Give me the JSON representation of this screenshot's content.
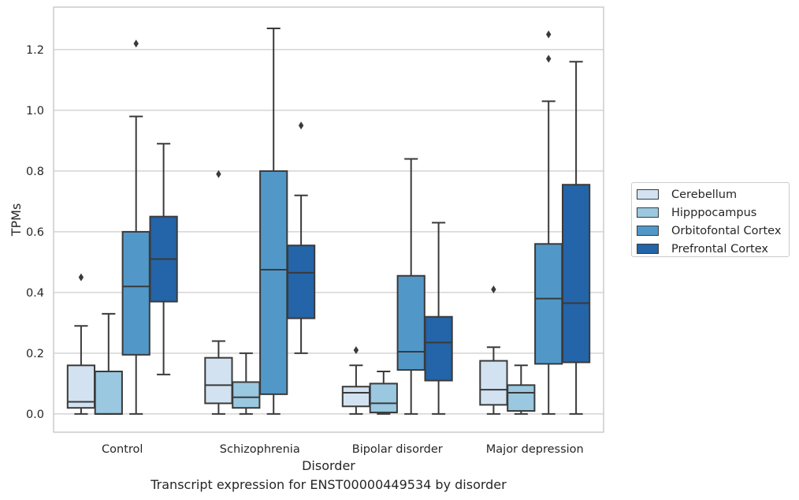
{
  "chart_data": {
    "type": "box",
    "title": "",
    "xlabel": "Disorder",
    "ylabel": "TPMs",
    "ylim": [
      -0.06,
      1.34
    ],
    "yticks": [
      0.0,
      0.2,
      0.4,
      0.6,
      0.8,
      1.0,
      1.2
    ],
    "grid": "horizontal",
    "legend_position": "right",
    "categories": [
      "Control",
      "Schizophrenia",
      "Bipolar disorder",
      "Major depression"
    ],
    "series": [
      {
        "name": "Cerebellum",
        "color": "#d2e2f1",
        "boxes": [
          {
            "whisker_low": 0.0,
            "q1": 0.02,
            "median": 0.04,
            "q3": 0.16,
            "whisker_high": 0.29,
            "outliers": [
              0.45
            ]
          },
          {
            "whisker_low": 0.0,
            "q1": 0.035,
            "median": 0.095,
            "q3": 0.185,
            "whisker_high": 0.24,
            "outliers": [
              0.79
            ]
          },
          {
            "whisker_low": 0.0,
            "q1": 0.025,
            "median": 0.07,
            "q3": 0.09,
            "whisker_high": 0.16,
            "outliers": [
              0.21
            ]
          },
          {
            "whisker_low": 0.0,
            "q1": 0.03,
            "median": 0.08,
            "q3": 0.175,
            "whisker_high": 0.22,
            "outliers": [
              0.41
            ]
          }
        ]
      },
      {
        "name": "Hipppocampus",
        "color": "#9ac8e0",
        "boxes": [
          {
            "whisker_low": 0.0,
            "q1": 0.0,
            "median": 0.0,
            "q3": 0.14,
            "whisker_high": 0.33,
            "outliers": []
          },
          {
            "whisker_low": 0.0,
            "q1": 0.02,
            "median": 0.055,
            "q3": 0.105,
            "whisker_high": 0.2,
            "outliers": []
          },
          {
            "whisker_low": 0.0,
            "q1": 0.005,
            "median": 0.035,
            "q3": 0.1,
            "whisker_high": 0.14,
            "outliers": []
          },
          {
            "whisker_low": 0.0,
            "q1": 0.01,
            "median": 0.07,
            "q3": 0.095,
            "whisker_high": 0.16,
            "outliers": []
          }
        ]
      },
      {
        "name": "Orbitofontal Cortex",
        "color": "#5198c8",
        "boxes": [
          {
            "whisker_low": 0.0,
            "q1": 0.195,
            "median": 0.42,
            "q3": 0.6,
            "whisker_high": 0.98,
            "outliers": [
              1.22
            ]
          },
          {
            "whisker_low": 0.0,
            "q1": 0.065,
            "median": 0.475,
            "q3": 0.8,
            "whisker_high": 1.27,
            "outliers": []
          },
          {
            "whisker_low": 0.0,
            "q1": 0.145,
            "median": 0.205,
            "q3": 0.455,
            "whisker_high": 0.84,
            "outliers": []
          },
          {
            "whisker_low": 0.0,
            "q1": 0.165,
            "median": 0.38,
            "q3": 0.56,
            "whisker_high": 1.03,
            "outliers": [
              1.17,
              1.25
            ]
          }
        ]
      },
      {
        "name": "Prefrontal Cortex",
        "color": "#2464a8",
        "boxes": [
          {
            "whisker_low": 0.13,
            "q1": 0.37,
            "median": 0.51,
            "q3": 0.65,
            "whisker_high": 0.89,
            "outliers": []
          },
          {
            "whisker_low": 0.2,
            "q1": 0.315,
            "median": 0.465,
            "q3": 0.555,
            "whisker_high": 0.72,
            "outliers": [
              0.95
            ]
          },
          {
            "whisker_low": 0.0,
            "q1": 0.11,
            "median": 0.235,
            "q3": 0.32,
            "whisker_high": 0.63,
            "outliers": []
          },
          {
            "whisker_low": 0.0,
            "q1": 0.17,
            "median": 0.365,
            "q3": 0.755,
            "whisker_high": 1.16,
            "outliers": []
          }
        ]
      }
    ]
  },
  "caption": "Transcript expression for ENST00000449534 by disorder"
}
